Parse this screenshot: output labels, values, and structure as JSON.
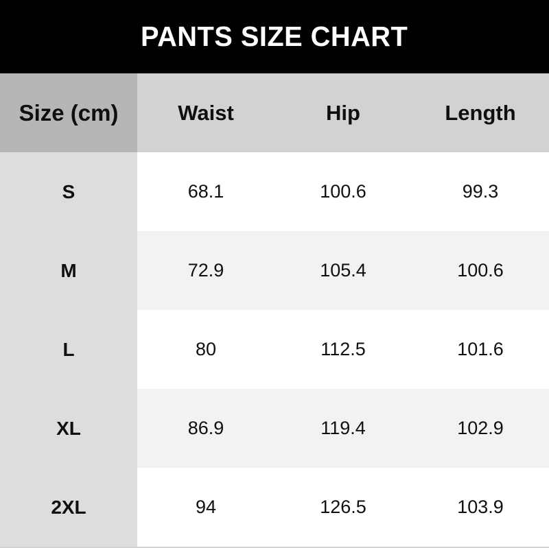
{
  "title_bar": {
    "title": "PANTS SIZE CHART"
  },
  "table": {
    "headers": [
      "Size (cm)",
      "Waist",
      "Hip",
      "Length"
    ],
    "rows": [
      [
        "S",
        "68.1",
        "100.6",
        "99.3"
      ],
      [
        "M",
        "72.9",
        "105.4",
        "100.6"
      ],
      [
        "L",
        "80",
        "112.5",
        "101.6"
      ],
      [
        "XL",
        "86.9",
        "119.4",
        "102.9"
      ],
      [
        "2XL",
        "94",
        "126.5",
        "103.9"
      ]
    ]
  },
  "chart_data": {
    "type": "table",
    "title": "PANTS SIZE CHART",
    "units": "cm",
    "columns": [
      "Size (cm)",
      "Waist",
      "Hip",
      "Length"
    ],
    "rows": [
      [
        "S",
        68.1,
        100.6,
        99.3
      ],
      [
        "M",
        72.9,
        105.4,
        100.6
      ],
      [
        "L",
        80,
        112.5,
        101.6
      ],
      [
        "XL",
        86.9,
        119.4,
        102.9
      ],
      [
        "2XL",
        94,
        126.5,
        103.9
      ]
    ]
  },
  "colors": {
    "title_bar_bg": "#000000",
    "title_text": "#ffffff",
    "header_first_cell_bg": "#b6b6b6",
    "header_cell_bg": "#d2d2d2",
    "label_col_bg": "#dddddd",
    "row_bg": "#ffffff",
    "alt_row_bg": "#f2f2f2",
    "page_bg": "#d3d3d3"
  }
}
